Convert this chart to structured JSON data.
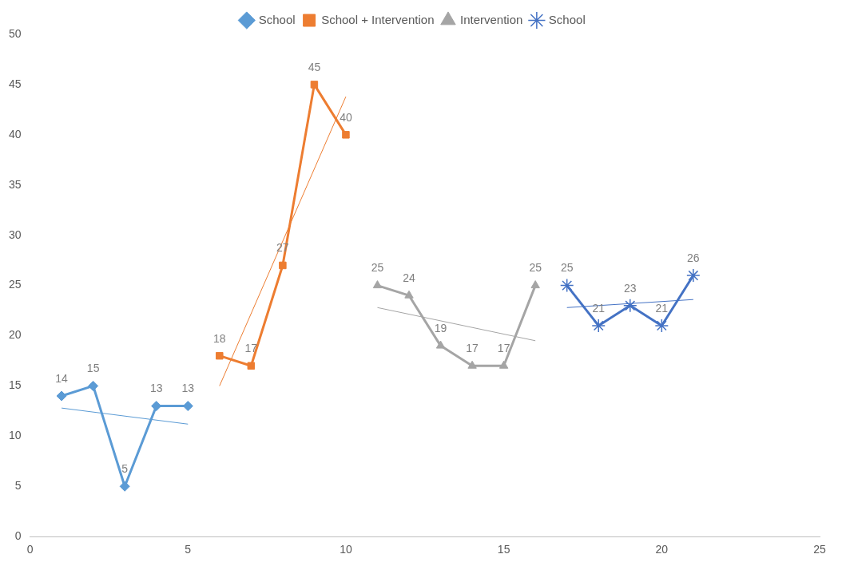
{
  "chart_data": {
    "type": "line",
    "xlim": [
      0,
      25
    ],
    "xticks": [
      0,
      5,
      10,
      15,
      20,
      25
    ],
    "ylim": [
      0,
      50
    ],
    "yticks": [
      0,
      5,
      10,
      15,
      20,
      25,
      30,
      35,
      40,
      45,
      50
    ],
    "grid": false,
    "legend": "top",
    "line_style": "solid",
    "series": [
      {
        "name": "School",
        "color": "#5b9bd5",
        "marker": "diamond",
        "x": [
          1,
          2,
          3,
          4,
          5
        ],
        "values": [
          14,
          15,
          5,
          13,
          13
        ],
        "value_labels": [
          "14",
          "15",
          "5",
          "13",
          "13"
        ]
      },
      {
        "name": "School + Intervention",
        "color": "#ed7d31",
        "marker": "square",
        "x": [
          6,
          7,
          8,
          9,
          10
        ],
        "values": [
          18,
          17,
          27,
          45,
          40
        ],
        "value_labels": [
          "18",
          "17",
          "27",
          "45",
          "40"
        ]
      },
      {
        "name": "Intervention",
        "color": "#a5a5a5",
        "marker": "triangle",
        "x": [
          11,
          12,
          13,
          14,
          15,
          16
        ],
        "values": [
          25,
          24,
          19,
          17,
          17,
          25
        ],
        "value_labels": [
          "25",
          "24",
          "19",
          "17",
          "17",
          "25"
        ]
      },
      {
        "name": "School",
        "color": "#4472c4",
        "marker": "cross",
        "x": [
          17,
          18,
          19,
          20,
          21
        ],
        "values": [
          25,
          21,
          23,
          21,
          26
        ],
        "value_labels": [
          "25",
          "21",
          "23",
          "21",
          "26"
        ]
      },
      {
        "color": "#5b9bd5",
        "marker": "none",
        "x": [
          1,
          5
        ],
        "values": [
          12.8,
          11.2
        ]
      },
      {
        "color": "#ed7d31",
        "marker": "none",
        "x": [
          6,
          10
        ],
        "values": [
          15,
          43.8
        ]
      },
      {
        "color": "#a5a5a5",
        "marker": "none",
        "x": [
          11,
          16
        ],
        "values": [
          22.8,
          19.5
        ]
      },
      {
        "color": "#4472c4",
        "marker": "none",
        "x": [
          17,
          21
        ],
        "values": [
          22.8,
          23.6
        ]
      }
    ]
  }
}
